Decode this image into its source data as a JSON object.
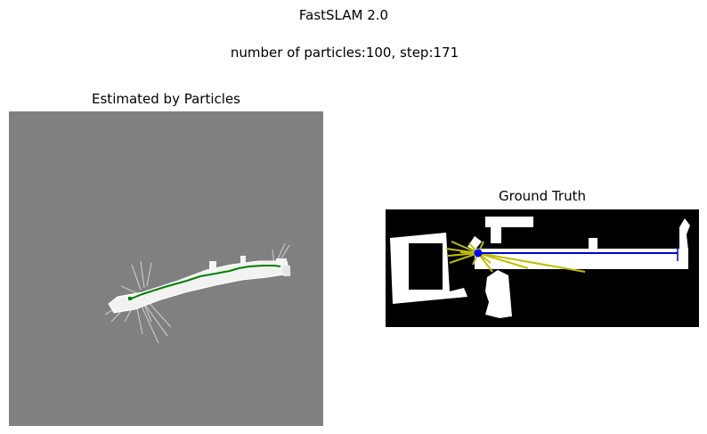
{
  "figure": {
    "title": "FastSLAM 2.0",
    "subtitle": "number of particles:100, step:171"
  },
  "panels": {
    "estimated": {
      "title": "Estimated by Particles"
    },
    "ground_truth": {
      "title": "Ground Truth"
    }
  },
  "colors": {
    "unknown_gray": "#808080",
    "free_space": "#ffffff",
    "obstacle": "#000000",
    "estimated_path": "#008000",
    "true_path": "#0000cc",
    "robot": "#0000ff",
    "laser": "#bfbf00"
  }
}
